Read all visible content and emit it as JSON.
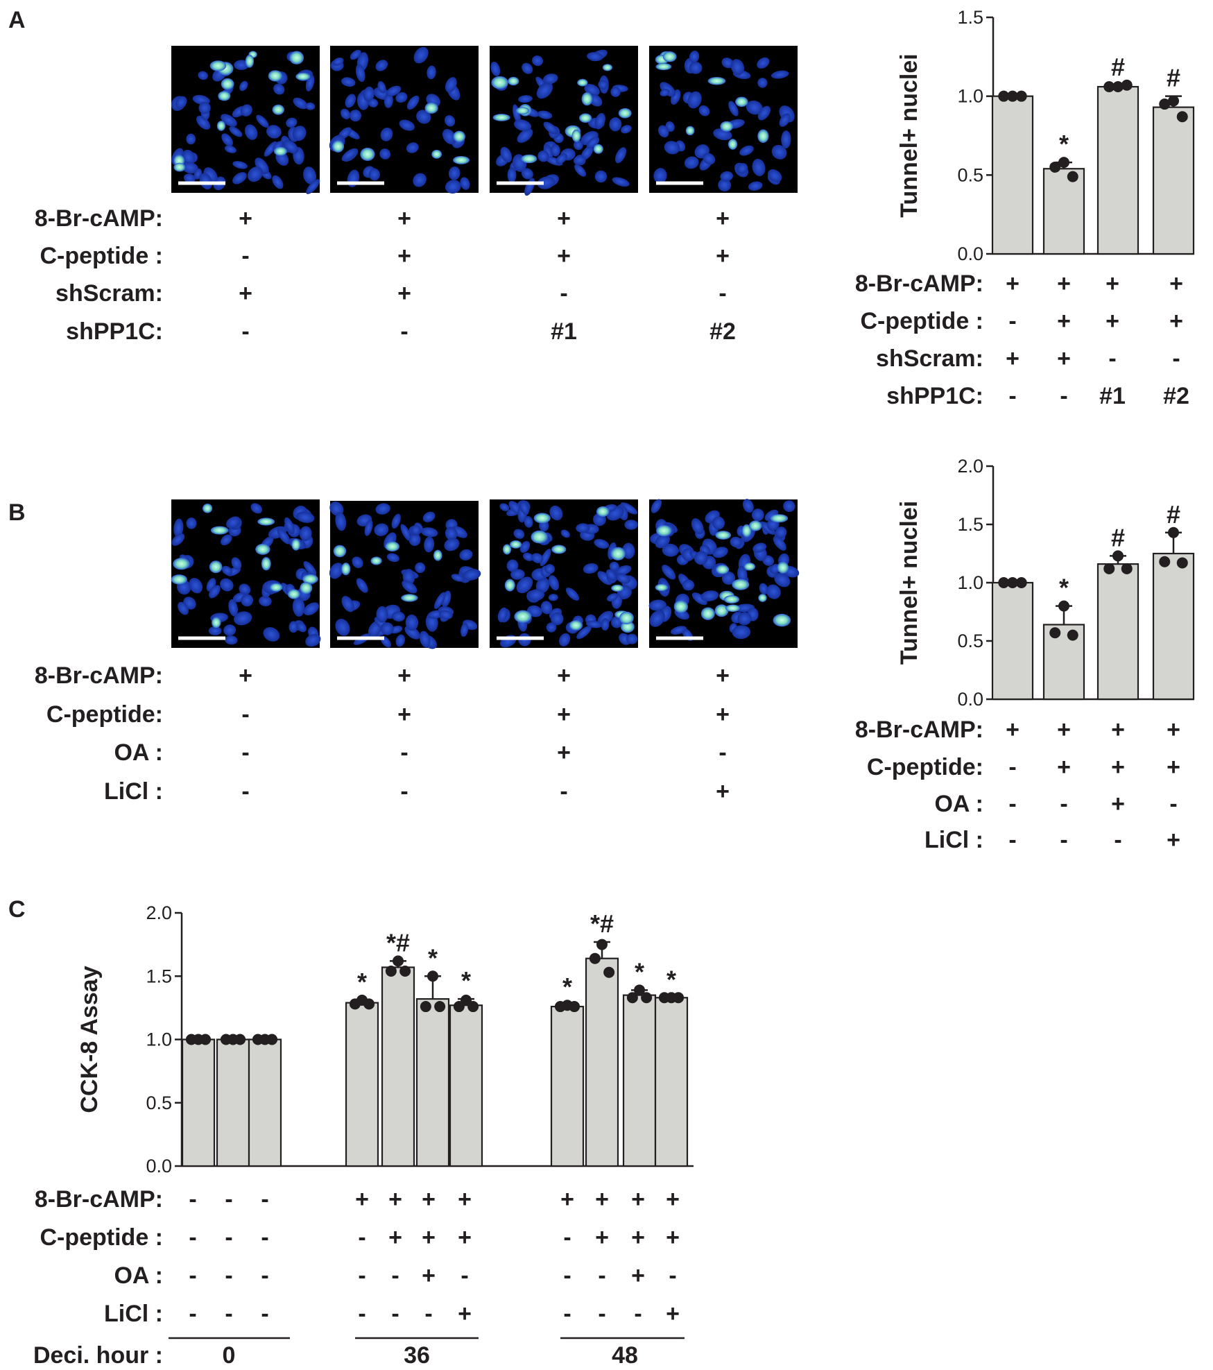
{
  "colors": {
    "bar_fill": "#d4d5d0",
    "micrograph_bg": "#000000",
    "nuclei": "#1f3fb8",
    "tunel_positive": "#8fe8c8",
    "scale_bar": "#ffffff",
    "text": "#231f20"
  },
  "panel_A": {
    "letter": "A",
    "micrographs": [
      "A1",
      "A2",
      "A3",
      "A4"
    ],
    "condition_rows": [
      {
        "label": "8-Br-cAMP:",
        "values": [
          "+",
          "+",
          "+",
          "+"
        ]
      },
      {
        "label": "C-peptide :",
        "values": [
          "-",
          "+",
          "+",
          "+"
        ]
      },
      {
        "label": "shScram:",
        "values": [
          "+",
          "+",
          "-",
          "-"
        ]
      },
      {
        "label": "shPP1C:",
        "values": [
          "-",
          "-",
          "#1",
          "#2"
        ]
      }
    ]
  },
  "panel_B": {
    "letter": "B",
    "micrographs": [
      "B1",
      "B2",
      "B3",
      "B4"
    ],
    "left_labels": [
      "8-Br-cAMP:",
      "C-peptide:",
      "OA :",
      "LiCl :"
    ],
    "right_labels": [
      "8-Br-cAMP:",
      "C-peptide:",
      "OA :",
      "LiCl :"
    ],
    "condition_values": [
      [
        "+",
        "+",
        "+",
        "+"
      ],
      [
        "-",
        "+",
        "+",
        "+"
      ],
      [
        "-",
        "-",
        "+",
        "-"
      ],
      [
        "-",
        "-",
        "-",
        "+"
      ]
    ]
  },
  "panel_C": {
    "letter": "C",
    "condition_rows": [
      {
        "label": "8-Br-cAMP:",
        "values": [
          "-",
          "-",
          "-",
          "+",
          "+",
          "+",
          "+",
          "+",
          "+",
          "+",
          "+"
        ]
      },
      {
        "label": "C-peptide :",
        "values": [
          "-",
          "-",
          "-",
          "-",
          "+",
          "+",
          "+",
          "-",
          "+",
          "+",
          "+"
        ]
      },
      {
        "label": "OA :",
        "values": [
          "-",
          "-",
          "-",
          "-",
          "-",
          "+",
          "-",
          "-",
          "-",
          "+",
          "-"
        ]
      },
      {
        "label": "LiCl :",
        "values": [
          "-",
          "-",
          "-",
          "-",
          "-",
          "-",
          "+",
          "-",
          "-",
          "-",
          "+"
        ]
      }
    ],
    "time_label": "Deci. hour :",
    "time_groups": [
      "0",
      "36",
      "48"
    ]
  },
  "chart_data": [
    {
      "id": "A",
      "type": "bar",
      "ylabel": "Tunnel+ nuclei",
      "ylim": [
        0,
        1.5
      ],
      "yticks": [
        "0.0",
        "0.5",
        "1.0",
        "1.5"
      ],
      "categories": [
        "1",
        "2",
        "3",
        "4"
      ],
      "values": [
        1.0,
        0.54,
        1.06,
        0.93
      ],
      "errors": [
        0.0,
        0.04,
        0.01,
        0.07
      ],
      "points": [
        [
          1.0,
          1.0,
          1.0
        ],
        [
          0.58,
          0.55,
          0.49
        ],
        [
          1.06,
          1.06,
          1.07
        ],
        [
          0.97,
          0.95,
          0.87
        ]
      ],
      "annotations": [
        "",
        "*",
        "#",
        "#"
      ]
    },
    {
      "id": "B",
      "type": "bar",
      "ylabel": "Tunnel+ nuclei",
      "ylim": [
        0,
        2.0
      ],
      "yticks": [
        "0.0",
        "0.5",
        "1.0",
        "1.5",
        "2.0"
      ],
      "categories": [
        "1",
        "2",
        "3",
        "4"
      ],
      "values": [
        1.0,
        0.64,
        1.16,
        1.25
      ],
      "errors": [
        0.0,
        0.16,
        0.07,
        0.18
      ],
      "points": [
        [
          1.0,
          1.0,
          1.0
        ],
        [
          0.8,
          0.57,
          0.55
        ],
        [
          1.23,
          1.12,
          1.12
        ],
        [
          1.43,
          1.18,
          1.17
        ]
      ],
      "annotations": [
        "",
        "*",
        "#",
        "#"
      ]
    },
    {
      "id": "C",
      "type": "bar",
      "ylabel": "CCK-8 Assay",
      "ylim": [
        0,
        2.0
      ],
      "yticks": [
        "0.0",
        "0.5",
        "1.0",
        "1.5",
        "2.0"
      ],
      "categories": [
        "1",
        "2",
        "3",
        "4",
        "5",
        "6",
        "7",
        "8",
        "9",
        "10",
        "11"
      ],
      "values": [
        1.0,
        1.0,
        1.0,
        1.29,
        1.57,
        1.32,
        1.27,
        1.26,
        1.64,
        1.35,
        1.33
      ],
      "errors": [
        0.0,
        0.0,
        0.0,
        0.02,
        0.05,
        0.18,
        0.05,
        0.01,
        0.13,
        0.04,
        0.0
      ],
      "points": [
        [
          1.0,
          1.0,
          1.0
        ],
        [
          1.0,
          1.0,
          1.0
        ],
        [
          1.0,
          1.0,
          1.0
        ],
        [
          1.31,
          1.28,
          1.28
        ],
        [
          1.62,
          1.54,
          1.54
        ],
        [
          1.5,
          1.26,
          1.26
        ],
        [
          1.31,
          1.26,
          1.26
        ],
        [
          1.27,
          1.26,
          1.26
        ],
        [
          1.75,
          1.64,
          1.53
        ],
        [
          1.39,
          1.33,
          1.33
        ],
        [
          1.33,
          1.33,
          1.33
        ]
      ],
      "annotations": [
        "",
        "",
        "",
        "*",
        "*#",
        "*",
        "*",
        "*",
        "*#",
        "*",
        "*"
      ]
    }
  ]
}
